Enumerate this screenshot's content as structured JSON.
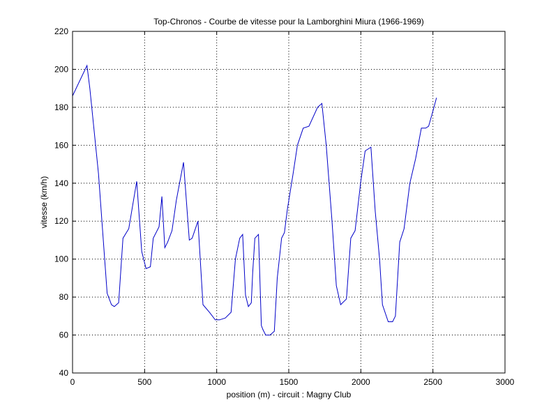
{
  "chart_data": {
    "type": "line",
    "title": "Top-Chronos - Courbe de vitesse pour la Lamborghini Miura (1966-1969)",
    "xlabel": "position (m) - circuit : Magny Club",
    "ylabel": "vitesse (km/h)",
    "xlim": [
      0,
      3000
    ],
    "ylim": [
      40,
      220
    ],
    "xticks": [
      0,
      500,
      1000,
      1500,
      2000,
      2500,
      3000
    ],
    "yticks": [
      40,
      60,
      80,
      100,
      120,
      140,
      160,
      180,
      200,
      220
    ],
    "grid": true,
    "line_color": "#0000c8",
    "x": [
      0,
      100,
      120,
      180,
      240,
      270,
      290,
      320,
      350,
      390,
      445,
      480,
      510,
      540,
      560,
      600,
      620,
      640,
      660,
      690,
      720,
      770,
      810,
      830,
      870,
      905,
      950,
      990,
      1020,
      1060,
      1100,
      1130,
      1160,
      1180,
      1200,
      1220,
      1240,
      1250,
      1265,
      1290,
      1310,
      1320,
      1340,
      1370,
      1400,
      1420,
      1450,
      1470,
      1490,
      1530,
      1560,
      1600,
      1640,
      1700,
      1730,
      1760,
      1800,
      1830,
      1860,
      1900,
      1930,
      1960,
      2000,
      2030,
      2070,
      2100,
      2130,
      2150,
      2190,
      2220,
      2240,
      2270,
      2300,
      2340,
      2380,
      2420,
      2450,
      2470,
      2500,
      2525
    ],
    "y": [
      186,
      202,
      190,
      145,
      82,
      76,
      75,
      77,
      111,
      116,
      141,
      104,
      95,
      96,
      111,
      117,
      133,
      106,
      109,
      115,
      131,
      151,
      110,
      111,
      120,
      76,
      72,
      68,
      68,
      69,
      72,
      100,
      111,
      113,
      81,
      75,
      77,
      93,
      111,
      113,
      65,
      63,
      60,
      60,
      62,
      90,
      111,
      114,
      126,
      145,
      160,
      169,
      170,
      180,
      182,
      160,
      120,
      86,
      76,
      79,
      111,
      115,
      141,
      157,
      159,
      125,
      100,
      76,
      67,
      67,
      70,
      109,
      116,
      140,
      153,
      169,
      169,
      170,
      178,
      185
    ]
  }
}
